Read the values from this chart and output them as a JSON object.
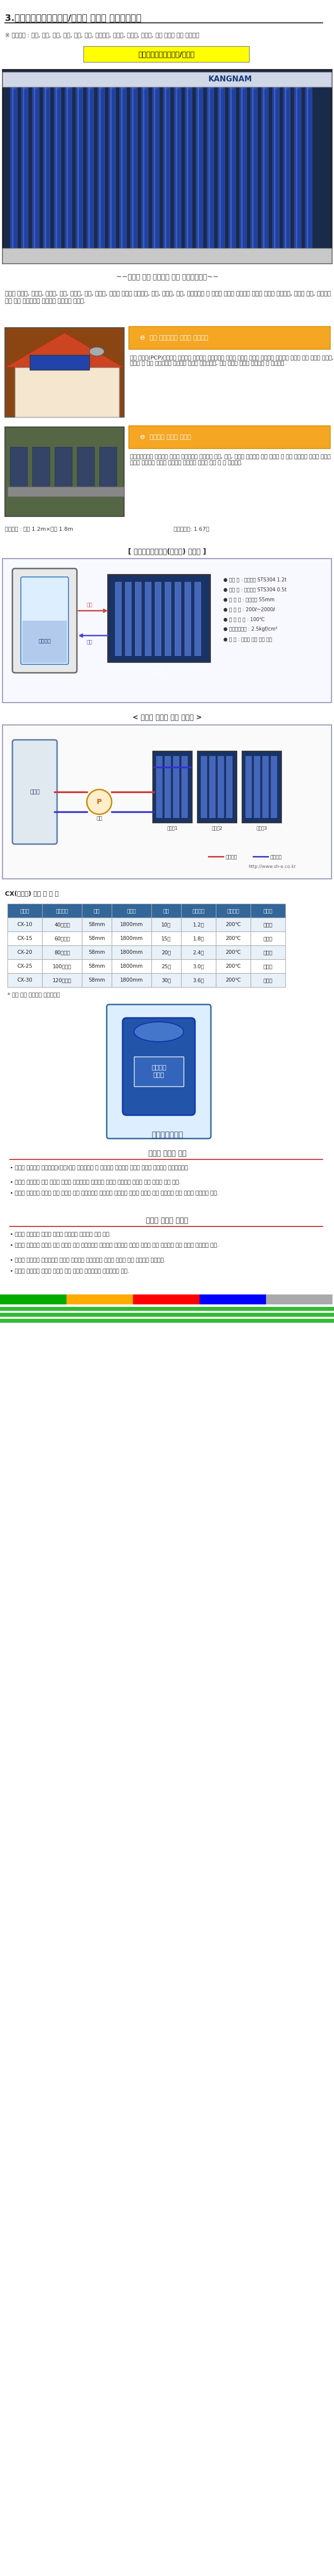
{
  "title": "3.메니폴더히트파이프형/수관형 진공관 태양열온수기",
  "usage_label": "※ 사용장소 : 주택, 콘센, 상가, 식당, 여관, 모텔, 복지시설, 병의원, 기숙사, 유치원, 공장 온수가 많이 필요한곳",
  "highlight_text": "메니폴더히트파이프형/수관형",
  "highlight_bg": "#FFFF00",
  "subtitle_center": "~~여러대 병렬 연결시공 하면 온수용량증가~~",
  "main_text": "산업용 온수기, 수영장, 양어장, 온실, 목욕탕, 공장, 기숙사, 가정용 온수기 전원주택, 단독, 다세대, 연립, 팬션하우스 등 온수가 필요한 곳이라면 손쉽게 설치가 가능하며, 기존의 기름, 심야전기 등고 함께 사용하시면 연료비가 대폭절감 됩니다.",
  "feature1_title": "자연 순환식으로 깨끗한 온수공급",
  "feature1_bg": "#F5A623",
  "feature1_text": "특수 집광경(PCP)집열기를 사용하여 자연순환 시키므로써 사계절 따뜻한 온수를 공급하는 태양열에 수돗물 뿐만 아니라 지하수, 연화수 등 어떤 수질에서도 부식이나 룰때가 끼지않으며, 항상 깨끗한 온수를 공급받을 수 있습니다.",
  "feature2_title": "경제적인 태양열 온수기",
  "feature2_bg": "#F5A623",
  "feature2_text": "태양열에너지를 이용하여 무한한 열에너지를 공급받아 기름, 가스, 전기등 연료비를 크게 절감할 수 있고 초기투자 비용은 들지만 수명이 반영구적 이므로 기존연료 절감으로 충분히 회수 할 수 있습니다.",
  "diagram_title": "[ 부분직접가열방식(개방형) 도면도 ]",
  "system_title": "< 태양열 집열기 배관 연결도 >",
  "table_title": "CX(메인관) 적정 용 적 표",
  "table_note": "* 위에 표를 참조해서 설치하세요",
  "product_title": "세한전기에너지",
  "spec_title1": "태양열 온수기 특징",
  "spec_items1": [
    "• 태양열 집열기는 신기술제품(특허)로서 특수열처리 된 고내식성 알루미늄 재질로 무게가 가벼우며 반영구적이다.",
    "• 태양열 집열기는 내부 튜브의 재질이 구리재질과 알루미늄 재질로 구성되어 있으며 집열 효율이 매우 높다.",
    "• 태양열 집열기는 기존의 집열 방식이 아닌 히트파이프 방식으로 설계되어 집열기 내부로 물이 들어가지 않아 동파의 위험성이 없다."
  ],
  "spec_title2": "태양열 온수기 특장점",
  "spec_items2": [
    "• 태양열 집열기는 진공관 구조로 되어있어 열손실이 매우 적다.",
    "• 태양열 집열기는 기존의 집열 방식이 아닌 히트파이프 방식으로 설계되어 집열기 내부로 물이 들어가지 않아 동파의 위험성이 없다.",
    "• 태양열 집열기는 독립적으로 장착된 진공관은 개별적으로 교체가 가능해 유지 보수비가 절감된다.",
    "• 태양열 집열기는 진공관 구조로 비가 오거나 흐린날에도 집열효과가 있다."
  ],
  "bottom_colors": [
    "#00AA00",
    "#FFAA00",
    "#FF0000",
    "#0000FF",
    "#AAAAAA"
  ],
  "bg_color": "#FFFFFF",
  "text_color": "#000000",
  "border_color": "#CCCCCC"
}
